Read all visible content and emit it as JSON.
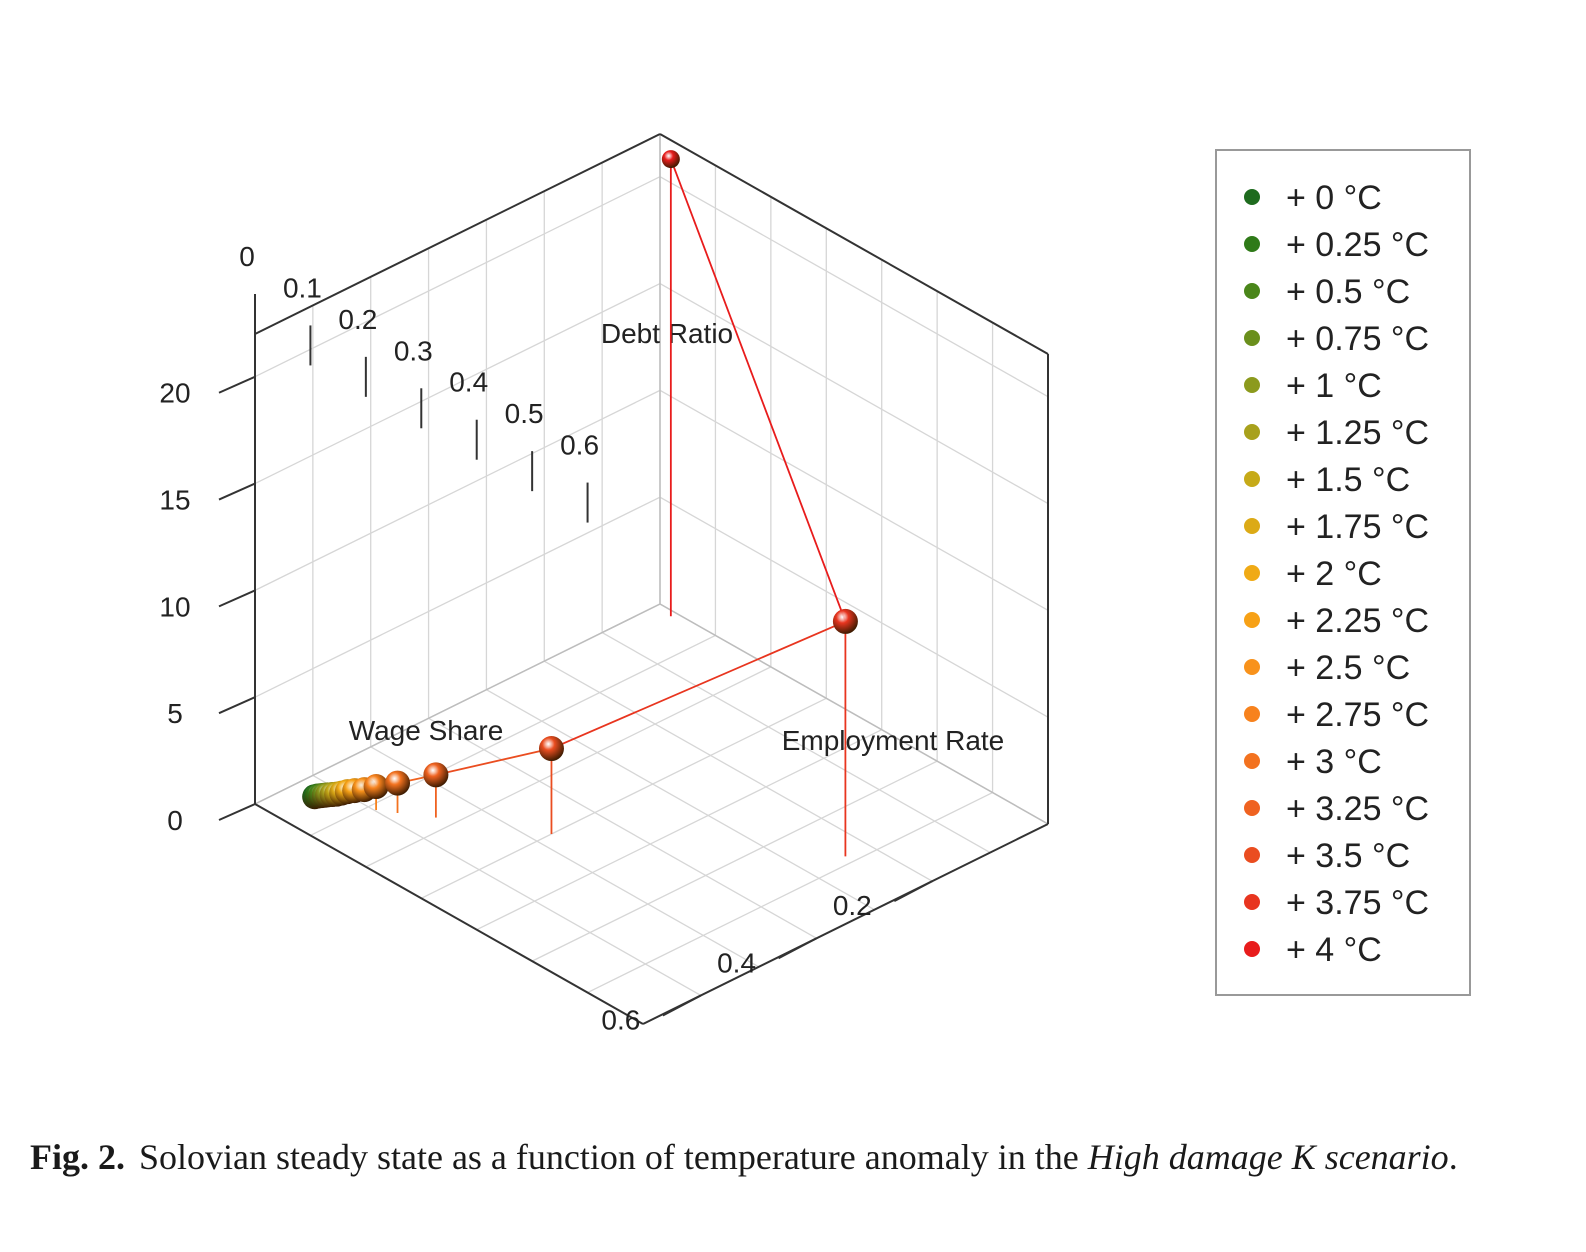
{
  "chart_data": {
    "type": "scatter",
    "projection": "3d",
    "axes": {
      "x": {
        "label": "Wage Share",
        "ticks": [
          0.2,
          0.4,
          0.6
        ],
        "ticklabels": [
          "0.2",
          "0.4",
          "0.6"
        ],
        "range": [
          0,
          0.7
        ]
      },
      "y": {
        "label": "Employment Rate",
        "ticks": [
          0,
          0.1,
          0.2,
          0.3,
          0.4,
          0.5,
          0.6
        ],
        "ticklabels": [
          "0",
          "0.1",
          "0.2",
          "0.3",
          "0.4",
          "0.5",
          "0.6"
        ],
        "range": [
          0,
          0.7
        ]
      },
      "z": {
        "label": "Debt Ratio",
        "ticks": [
          0,
          5,
          10,
          15,
          20
        ],
        "ticklabels": [
          "0",
          "5",
          "10",
          "15",
          "20"
        ],
        "range": [
          0,
          22
        ]
      }
    },
    "grid": true,
    "legend_position": "right",
    "series": [
      {
        "name": "+ 0 °C",
        "color": "#1e6b1e",
        "wage_share": 0.64,
        "employment_rate": 0.045,
        "debt_ratio": 0.2
      },
      {
        "name": "+ 0.25 °C",
        "color": "#2f7a18",
        "wage_share": 0.638,
        "employment_rate": 0.048,
        "debt_ratio": 0.25
      },
      {
        "name": "+ 0.5 °C",
        "color": "#4a861a",
        "wage_share": 0.636,
        "employment_rate": 0.052,
        "debt_ratio": 0.3
      },
      {
        "name": "+ 0.75 °C",
        "color": "#6a8f1c",
        "wage_share": 0.634,
        "employment_rate": 0.056,
        "debt_ratio": 0.35
      },
      {
        "name": "+ 1 °C",
        "color": "#8c9a1d",
        "wage_share": 0.632,
        "employment_rate": 0.06,
        "debt_ratio": 0.4
      },
      {
        "name": "+ 1.25 °C",
        "color": "#a8a11c",
        "wage_share": 0.629,
        "employment_rate": 0.065,
        "debt_ratio": 0.45
      },
      {
        "name": "+ 1.5 °C",
        "color": "#c6aa18",
        "wage_share": 0.626,
        "employment_rate": 0.07,
        "debt_ratio": 0.5
      },
      {
        "name": "+ 1.75 °C",
        "color": "#dcaa16",
        "wage_share": 0.623,
        "employment_rate": 0.076,
        "debt_ratio": 0.6
      },
      {
        "name": "+ 2 °C",
        "color": "#f0aa15",
        "wage_share": 0.619,
        "employment_rate": 0.082,
        "debt_ratio": 0.7
      },
      {
        "name": "+ 2.25 °C",
        "color": "#f7a116",
        "wage_share": 0.614,
        "employment_rate": 0.09,
        "debt_ratio": 0.8
      },
      {
        "name": "+ 2.5 °C",
        "color": "#f8921b",
        "wage_share": 0.607,
        "employment_rate": 0.1,
        "debt_ratio": 0.9
      },
      {
        "name": "+ 2.75 °C",
        "color": "#f7821d",
        "wage_share": 0.598,
        "employment_rate": 0.112,
        "debt_ratio": 1.1
      },
      {
        "name": "+ 3 °C",
        "color": "#f3721f",
        "wage_share": 0.583,
        "employment_rate": 0.135,
        "debt_ratio": 1.4
      },
      {
        "name": "+ 3.25 °C",
        "color": "#ef6220",
        "wage_share": 0.555,
        "employment_rate": 0.175,
        "debt_ratio": 2.0
      },
      {
        "name": "+ 3.5 °C",
        "color": "#ea4d20",
        "wage_share": 0.475,
        "employment_rate": 0.3,
        "debt_ratio": 4.0
      },
      {
        "name": "+ 3.75 °C",
        "color": "#e8351f",
        "wage_share": 0.24,
        "employment_rate": 0.585,
        "debt_ratio": 11.0
      },
      {
        "name": "+ 4 °C",
        "color": "#e81c1c",
        "wage_share": 0.01,
        "employment_rate": 0.03,
        "debt_ratio": 21.4
      }
    ]
  },
  "caption": {
    "label": "Fig. 2.",
    "text_before": "Solovian steady state as a function of temperature anomaly in the ",
    "italic": "High damage K scenario",
    "text_after": "."
  }
}
